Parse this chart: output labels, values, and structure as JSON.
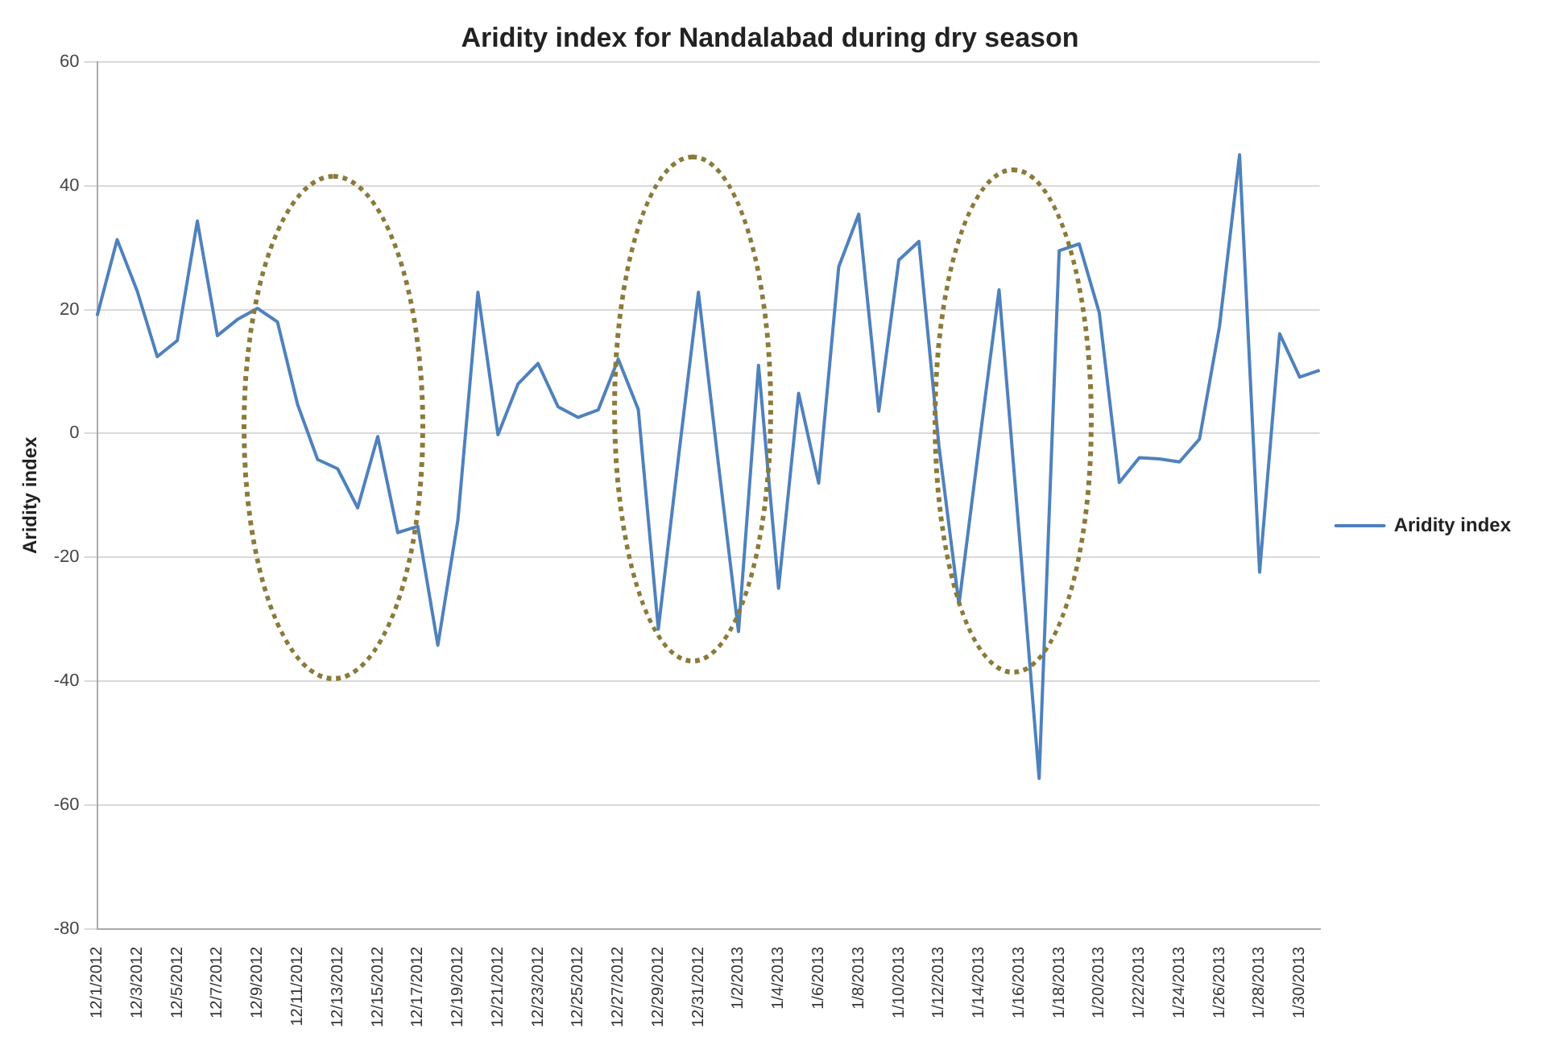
{
  "chart_data": {
    "type": "line",
    "title": "Aridity index for Nandalabad during dry season",
    "ylabel": "Aridity index",
    "categories": [
      "12/1/2012",
      null,
      "12/3/2012",
      null,
      "12/5/2012",
      null,
      "12/7/2012",
      null,
      "12/9/2012",
      null,
      "12/11/2012",
      null,
      "12/13/2012",
      null,
      "12/15/2012",
      null,
      "12/17/2012",
      null,
      "12/19/2012",
      null,
      "12/21/2012",
      null,
      "12/23/2012",
      null,
      "12/25/2012",
      null,
      "12/27/2012",
      null,
      "12/29/2012",
      null,
      "12/31/2012",
      null,
      "1/2/2013",
      null,
      "1/4/2013",
      null,
      "1/6/2013",
      null,
      "1/8/2013",
      null,
      "1/10/2013",
      null,
      "1/12/2013",
      null,
      "1/14/2013",
      null,
      "1/16/2013",
      null,
      "1/18/2013",
      null,
      "1/20/2013",
      null,
      "1/22/2013",
      null,
      "1/24/2013",
      null,
      "1/26/2013",
      null,
      "1/28/2013",
      null,
      "1/30/2013",
      null
    ],
    "series": [
      {
        "name": "Aridity index",
        "color": "#4f81bd",
        "values": [
          19,
          31.3,
          23,
          12.4,
          15,
          34.3,
          15.8,
          18.4,
          20.2,
          18,
          4.7,
          -4.2,
          -5.7,
          -12,
          -0.5,
          -16,
          -15,
          -34.2,
          -14,
          22.8,
          -0.2,
          8,
          11.3,
          4.3,
          2.6,
          3.8,
          12,
          3.9,
          -31.6,
          -4,
          22.8,
          -5,
          -32,
          11,
          -25,
          6.5,
          -8,
          26.9,
          35.4,
          3.6,
          28,
          31,
          -2,
          -27.6,
          -2,
          23.2,
          -16,
          -55.7,
          29.5,
          30.6,
          19.5,
          -7.9,
          -3.9,
          -4.1,
          -4.6,
          -0.9,
          17.3,
          45,
          -22.4,
          16.1,
          9.1,
          10.2
        ]
      }
    ],
    "ylim": [
      -80,
      60
    ],
    "yticks": [
      -80,
      -60,
      -40,
      -20,
      0,
      20,
      40,
      60
    ],
    "grid": "y",
    "legend": "right",
    "marker": "none",
    "line_style": "solid"
  }
}
